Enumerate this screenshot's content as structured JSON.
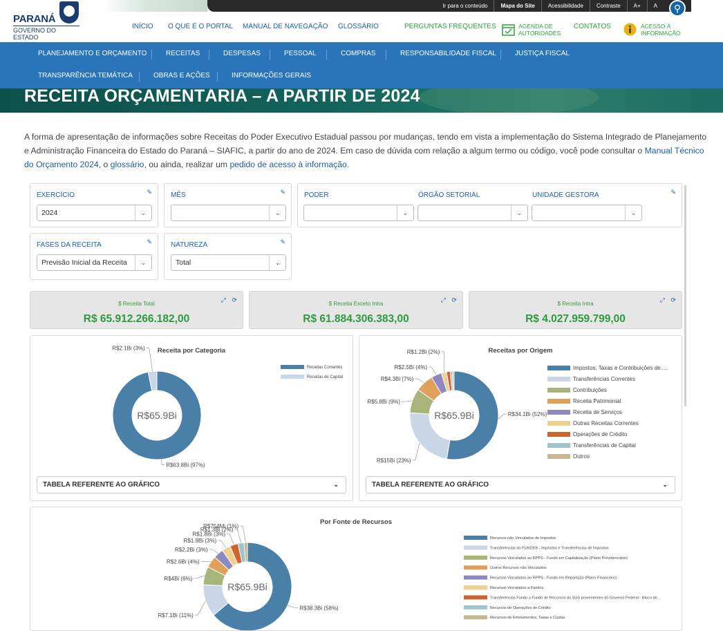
{
  "brand": {
    "name": "PARANÁ",
    "sub": "GOVERNO DO ESTADO"
  },
  "topbar": [
    "Ir para o conteúdo",
    "Mapa do Site",
    "Acessibilidade",
    "Contraste",
    "A+",
    "A"
  ],
  "mainnav": {
    "inicio": "INÍCIO",
    "oque": "O QUE É O PORTAL",
    "manual": "MANUAL DE NAVEGAÇÃO",
    "glossario": "GLOSSÁRIO",
    "perguntas": "PERGUNTAS FREQUENTES",
    "agenda1": "AGENDA DE",
    "agenda2": "AUTORIDADES",
    "contatos": "CONTATOS",
    "acesso1": "ACESSO À",
    "acesso2": "INFORMAÇÃO"
  },
  "bluenav": {
    "row1": [
      "PLANEJAMENTO E ORÇAMENTO",
      "RECEITAS",
      "DESPESAS",
      "PESSOAL",
      "COMPRAS",
      "RESPONSABILIDADE FISCAL",
      "JUSTIÇA FISCAL"
    ],
    "row2": [
      "TRANSPARÊNCIA TEMÁTICA",
      "OBRAS E AÇÕES",
      "INFORMAÇÕES GERAIS"
    ]
  },
  "page_title": "RECEITA ORÇAMENTÁRIA – A PARTIR DE 2024",
  "intro": {
    "p1": "A forma de apresentação de informações sobre Receitas do Poder Executivo Estadual passou por mudanças, tendo em vista a implementação do Sistema Integrado de Planejamento e Administração Financeira do Estado do Paraná – SIAFIC, a partir do ano de 2024. Em caso de dúvida com relação a algum termo ou código, você pode consultar o ",
    "link1": "Manual Técnico do Orçamento 2024",
    "p2": ", o ",
    "link2": "glossário",
    "p3": ", ou ainda, realizar um ",
    "link3": "pedido de acesso à informação",
    "p4": "."
  },
  "filters": {
    "exercicio": {
      "label": "EXERCÍCIO",
      "value": "2024"
    },
    "mes": {
      "label": "MÊS",
      "value": ""
    },
    "poder": {
      "label": "PODER",
      "value": ""
    },
    "orgao": {
      "label": "ÓRGÃO SETORIAL",
      "value": ""
    },
    "unidade": {
      "label": "UNIDADE GESTORA",
      "value": ""
    },
    "fases": {
      "label": "FASES DA RECEITA",
      "value": "Previsão Inicial da Receita"
    },
    "natureza": {
      "label": "NATUREZA",
      "value": "Total"
    }
  },
  "kpis": [
    {
      "label": "Receita Total",
      "value": "R$ 65.912.266.182,00"
    },
    {
      "label": "Receita Exceto Intra",
      "value": "R$ 61.884.306.383,00"
    },
    {
      "label": "Receita Intra",
      "value": "R$ 4.027.959.799,00"
    }
  ],
  "table_button": "TABELA REFERENTE AO GRÁFICO",
  "colors": {
    "brand_blue": "#2a74ba",
    "link_blue": "#1d5fa3",
    "green": "#2e9a3e"
  },
  "chart_data": [
    {
      "type": "pie",
      "title": "Receita por Categoria",
      "center_label": "R$65.9Bi",
      "labels": [
        "Receitas Correntes",
        "Receitas de Capital"
      ],
      "values": [
        63.8,
        2.1
      ],
      "data_labels": [
        "R$63.8Bi (97%)",
        "R$2.1Bi (3%)"
      ],
      "colors": [
        "#4a80a8",
        "#c8d6e5"
      ]
    },
    {
      "type": "pie",
      "title": "Receitas por Origem",
      "center_label": "R$65.9Bi",
      "labels": [
        "Impostos, Taxas e Contribuições de ...",
        "Transferências Correntes",
        "Contribuições",
        "Receita Patrimonial",
        "Receita de Serviços",
        "Outras Receitas Correntes",
        "Operações de Crédito",
        "Transferências de Capital",
        "Outros"
      ],
      "values": [
        34.1,
        15,
        5.8,
        4.3,
        2.5,
        1.2,
        0.9,
        0.5,
        0.4
      ],
      "data_labels": [
        "R$34.1Bi (52%)",
        "R$15Bi (23%)",
        "R$5.8Bi (9%)",
        "R$4.3Bi (7%)",
        "R$2.5Bi (4%)",
        "R$1.2Bi (2%)",
        "",
        "",
        ""
      ],
      "colors": [
        "#4a80a8",
        "#c8d6e5",
        "#a8b57a",
        "#e0a05c",
        "#8c88c0",
        "#f0d08e",
        "#cf6433",
        "#9ec3cc",
        "#c9b791"
      ]
    },
    {
      "type": "pie",
      "title": "Por Fonte de Recursos",
      "center_label": "R$65.9Bi",
      "labels": [
        "Recursos não Vinculados de Impostos",
        "Transferências do FUNDEB - Impostos e Transferências de Impostos",
        "Recursos Vinculados ao RPPS - Fundo em Capitalização (Plano Previdenciário)",
        "Outros Recursos não Vinculados",
        "Recursos Vinculados ao RPPS - Fundo em Repartição (Plano Financeiro)",
        "Recursos Vinculados a Fundos",
        "Transferências Fundo a Fundo de Recursos do SUS provenientes do Governo Federal - Bloco de...",
        "Recursos de Operações de Crédito",
        "Recursos de Emolumentos, Taxas e Custas"
      ],
      "values": [
        38.3,
        7.1,
        4,
        2.6,
        2.2,
        1.9,
        1.8,
        1.3,
        0.754
      ],
      "data_labels": [
        "R$38.3Bi (58%)",
        "R$7.1Bi (11%)",
        "R$4Bi (6%)",
        "R$2.6Bi (4%)",
        "R$2.2Bi (3%)",
        "R$1.9Bi (3%)",
        "R$1.8Bi (3%)",
        "R$1.3Bi (2%)",
        "R$754Mi (1%)"
      ],
      "colors": [
        "#4a80a8",
        "#c8d6e5",
        "#a8b57a",
        "#e0a05c",
        "#8c88c0",
        "#f0d08e",
        "#cf6433",
        "#9ec3cc",
        "#c9b791"
      ]
    }
  ]
}
